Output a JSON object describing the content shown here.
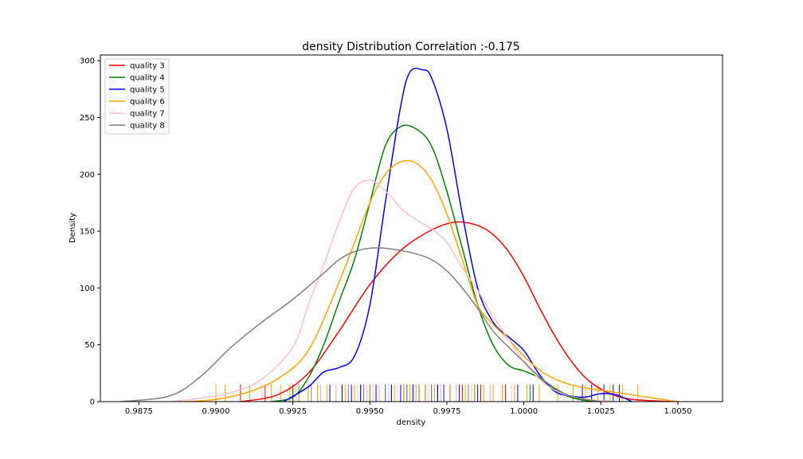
{
  "chart_data": {
    "type": "line",
    "title": "density Distribution Correlation :-0.175",
    "xlabel": "density",
    "ylabel": "Density",
    "xlim": [
      0.98625,
      1.00645
    ],
    "ylim": [
      0,
      305
    ],
    "xticks": [
      0.9875,
      0.99,
      0.9925,
      0.995,
      0.9975,
      1.0,
      1.0025,
      1.005
    ],
    "xtick_labels": [
      "0.9875",
      "0.9900",
      "0.9925",
      "0.9950",
      "0.9975",
      "1.0000",
      "1.0025",
      "1.0050"
    ],
    "yticks": [
      0,
      50,
      100,
      150,
      200,
      250,
      300
    ],
    "ytick_labels": [
      "0",
      "50",
      "100",
      "150",
      "200",
      "250",
      "300"
    ],
    "legend_position": "top-left",
    "rug_height": 15,
    "series": [
      {
        "name": "quality 3",
        "color": "#ff0000",
        "x": [
          0.9908,
          0.992,
          0.993,
          0.994,
          0.995,
          0.996,
          0.997,
          0.9978,
          0.9985,
          0.999,
          0.9995,
          1.0,
          1.0005,
          1.001,
          1.0015,
          1.002,
          1.0025,
          1.003,
          1.0035,
          1.004,
          1.0048
        ],
        "y": [
          0,
          6,
          25,
          62,
          103,
          133,
          151,
          158,
          155,
          147,
          132,
          110,
          83,
          58,
          37,
          21,
          11,
          5,
          2,
          1,
          0
        ],
        "rug": [
          0.9908,
          0.9916,
          0.9925,
          0.9934,
          0.9956,
          0.9964,
          0.9972,
          0.998,
          0.9986,
          0.9994
        ]
      },
      {
        "name": "quality 4",
        "color": "#008000",
        "x": [
          0.9918,
          0.9925,
          0.993,
          0.9935,
          0.994,
          0.9945,
          0.995,
          0.9955,
          0.996,
          0.9965,
          0.997,
          0.9975,
          0.998,
          0.9985,
          0.999,
          0.9995,
          1.0,
          1.0005,
          1.001,
          1.0015,
          1.002,
          1.0025
        ],
        "y": [
          0,
          4,
          21,
          50,
          88,
          125,
          175,
          225,
          242,
          240,
          225,
          185,
          135,
          85,
          50,
          32,
          27,
          21,
          11,
          4,
          1,
          0
        ],
        "rug": [
          0.9925,
          0.9933,
          0.9941,
          0.9947,
          0.9952,
          0.9957,
          0.9961,
          0.9965,
          0.9968,
          0.9972,
          0.9978,
          0.9984,
          0.999,
          1.0002
        ]
      },
      {
        "name": "quality 5",
        "color": "#0000ff",
        "x": [
          0.9922,
          0.993,
          0.9935,
          0.994,
          0.9945,
          0.995,
          0.9955,
          0.996,
          0.9963,
          0.9967,
          0.997,
          0.9975,
          0.998,
          0.9985,
          0.999,
          0.9995,
          1.0,
          1.0005,
          1.001,
          1.0015,
          1.002,
          1.0025,
          1.003,
          1.0035
        ],
        "y": [
          0,
          13,
          26,
          30,
          40,
          85,
          175,
          260,
          290,
          292,
          285,
          240,
          165,
          100,
          70,
          57,
          45,
          24,
          9,
          5,
          4,
          7,
          6,
          0
        ],
        "rug": [
          0.9927,
          0.993,
          0.9934,
          0.9937,
          0.9941,
          0.9944,
          0.9947,
          0.995,
          0.9952,
          0.9955,
          0.9957,
          0.996,
          0.9962,
          0.9964,
          0.9966,
          0.9968,
          0.997,
          0.9972,
          0.9974,
          0.9976,
          0.9979,
          0.9982,
          0.9985,
          0.9989,
          0.9993,
          0.9998,
          1.0003,
          1.0019,
          1.0022,
          1.0026,
          1.0029,
          1.0031
        ]
      },
      {
        "name": "quality 6",
        "color": "#ffa500",
        "x": [
          0.989,
          0.99,
          0.991,
          0.992,
          0.993,
          0.994,
          0.995,
          0.9955,
          0.996,
          0.9965,
          0.997,
          0.9975,
          0.998,
          0.9985,
          0.999,
          0.9995,
          1.0,
          1.0005,
          1.001,
          1.0015,
          1.002,
          1.0025,
          1.003,
          1.0035,
          1.004,
          1.0045,
          1.005
        ],
        "y": [
          0,
          2,
          8,
          20,
          45,
          105,
          175,
          200,
          211,
          210,
          195,
          165,
          125,
          85,
          68,
          55,
          40,
          28,
          20,
          15,
          12,
          10,
          8,
          6,
          4,
          2,
          0
        ],
        "rug": [
          0.99,
          0.9903,
          0.9911,
          0.9915,
          0.9918,
          0.9921,
          0.9924,
          0.9927,
          0.993,
          0.9933,
          0.9936,
          0.9939,
          0.9942,
          0.9945,
          0.9948,
          0.995,
          0.9953,
          0.9956,
          0.9958,
          0.9961,
          0.9963,
          0.9966,
          0.9968,
          0.9971,
          0.9973,
          0.9976,
          0.9978,
          0.9981,
          0.9984,
          0.9987,
          0.999,
          0.9993,
          0.9997,
          1.0001,
          1.0005,
          1.0011,
          1.0016,
          1.002,
          1.0024,
          1.0028,
          1.0032,
          1.0037
        ]
      },
      {
        "name": "quality 7",
        "color": "#ffc0cb",
        "x": [
          0.9885,
          0.9895,
          0.9905,
          0.9915,
          0.9925,
          0.993,
          0.9935,
          0.994,
          0.9945,
          0.995,
          0.9953,
          0.9957,
          0.996,
          0.9965,
          0.997,
          0.9975,
          0.998,
          0.9985,
          0.999,
          0.9995,
          1.0,
          1.0005,
          1.001,
          1.0015,
          1.002,
          1.0025,
          1.003
        ],
        "y": [
          0,
          3,
          8,
          20,
          48,
          85,
          120,
          158,
          188,
          195,
          190,
          180,
          170,
          160,
          152,
          140,
          118,
          98,
          75,
          55,
          35,
          20,
          10,
          5,
          2,
          1,
          0
        ],
        "rug": [
          0.9915,
          0.9926,
          0.9934,
          0.9939,
          0.9943,
          0.9946,
          0.9949,
          0.9951,
          0.9953,
          0.9956,
          0.9959,
          0.9962,
          0.9965,
          0.9969,
          0.9973,
          0.9978,
          0.9983,
          0.9989,
          0.9996
        ]
      },
      {
        "name": "quality 8",
        "color": "#808080",
        "x": [
          0.9869,
          0.9885,
          0.9895,
          0.9905,
          0.9915,
          0.9925,
          0.9935,
          0.994,
          0.9945,
          0.995,
          0.9955,
          0.996,
          0.9965,
          0.997,
          0.9975,
          0.998,
          0.9985,
          0.999,
          0.9995,
          1.0,
          1.0005,
          1.001,
          1.0015,
          1.002,
          1.0025
        ],
        "y": [
          0,
          5,
          22,
          48,
          70,
          90,
          113,
          125,
          132,
          135,
          135,
          133,
          130,
          125,
          115,
          100,
          82,
          62,
          48,
          35,
          22,
          12,
          5,
          2,
          0
        ],
        "rug": [
          0.9931,
          0.9943,
          0.9948,
          0.9955,
          0.9962,
          0.997,
          0.9982
        ]
      }
    ]
  }
}
